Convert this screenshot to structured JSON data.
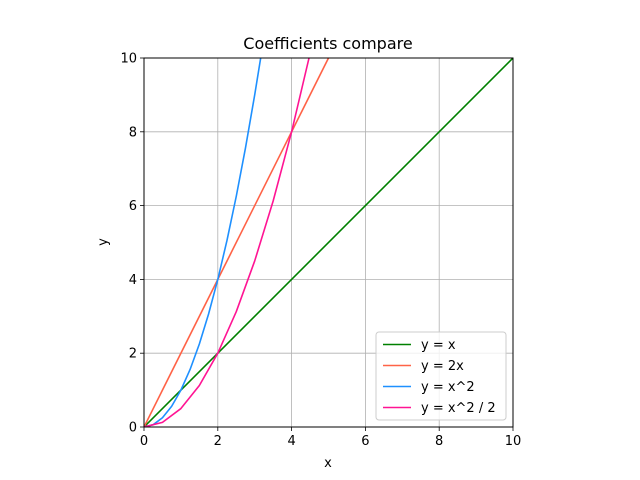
{
  "chart_data": {
    "type": "line",
    "title": "Coefficients compare",
    "xlabel": "x",
    "ylabel": "y",
    "xlim": [
      0,
      10
    ],
    "ylim": [
      0,
      10
    ],
    "xticks": [
      "0",
      "2",
      "4",
      "6",
      "8",
      "10"
    ],
    "yticks": [
      "0",
      "2",
      "4",
      "6",
      "8",
      "10"
    ],
    "grid": true,
    "legend_position": "lower-right",
    "series": [
      {
        "name": "y = x",
        "color": "#008000",
        "x": [
          0,
          10
        ],
        "y": [
          0,
          10
        ]
      },
      {
        "name": "y = 2x",
        "color": "#ff6347",
        "x": [
          0,
          5
        ],
        "y": [
          0,
          10
        ]
      },
      {
        "name": "y = x^2",
        "color": "#1e90ff",
        "x": [
          0,
          0.25,
          0.5,
          0.75,
          1,
          1.25,
          1.5,
          1.75,
          2,
          2.25,
          2.5,
          2.75,
          3,
          3.162
        ],
        "y": [
          0,
          0.0625,
          0.25,
          0.5625,
          1,
          1.5625,
          2.25,
          3.0625,
          4,
          5.0625,
          6.25,
          7.5625,
          9,
          10
        ]
      },
      {
        "name": "y = x^2 / 2",
        "color": "#ff1493",
        "x": [
          0,
          0.5,
          1,
          1.5,
          2,
          2.5,
          3,
          3.5,
          4,
          4.472
        ],
        "y": [
          0,
          0.125,
          0.5,
          1.125,
          2,
          3.125,
          4.5,
          6.125,
          8,
          10
        ]
      }
    ]
  }
}
